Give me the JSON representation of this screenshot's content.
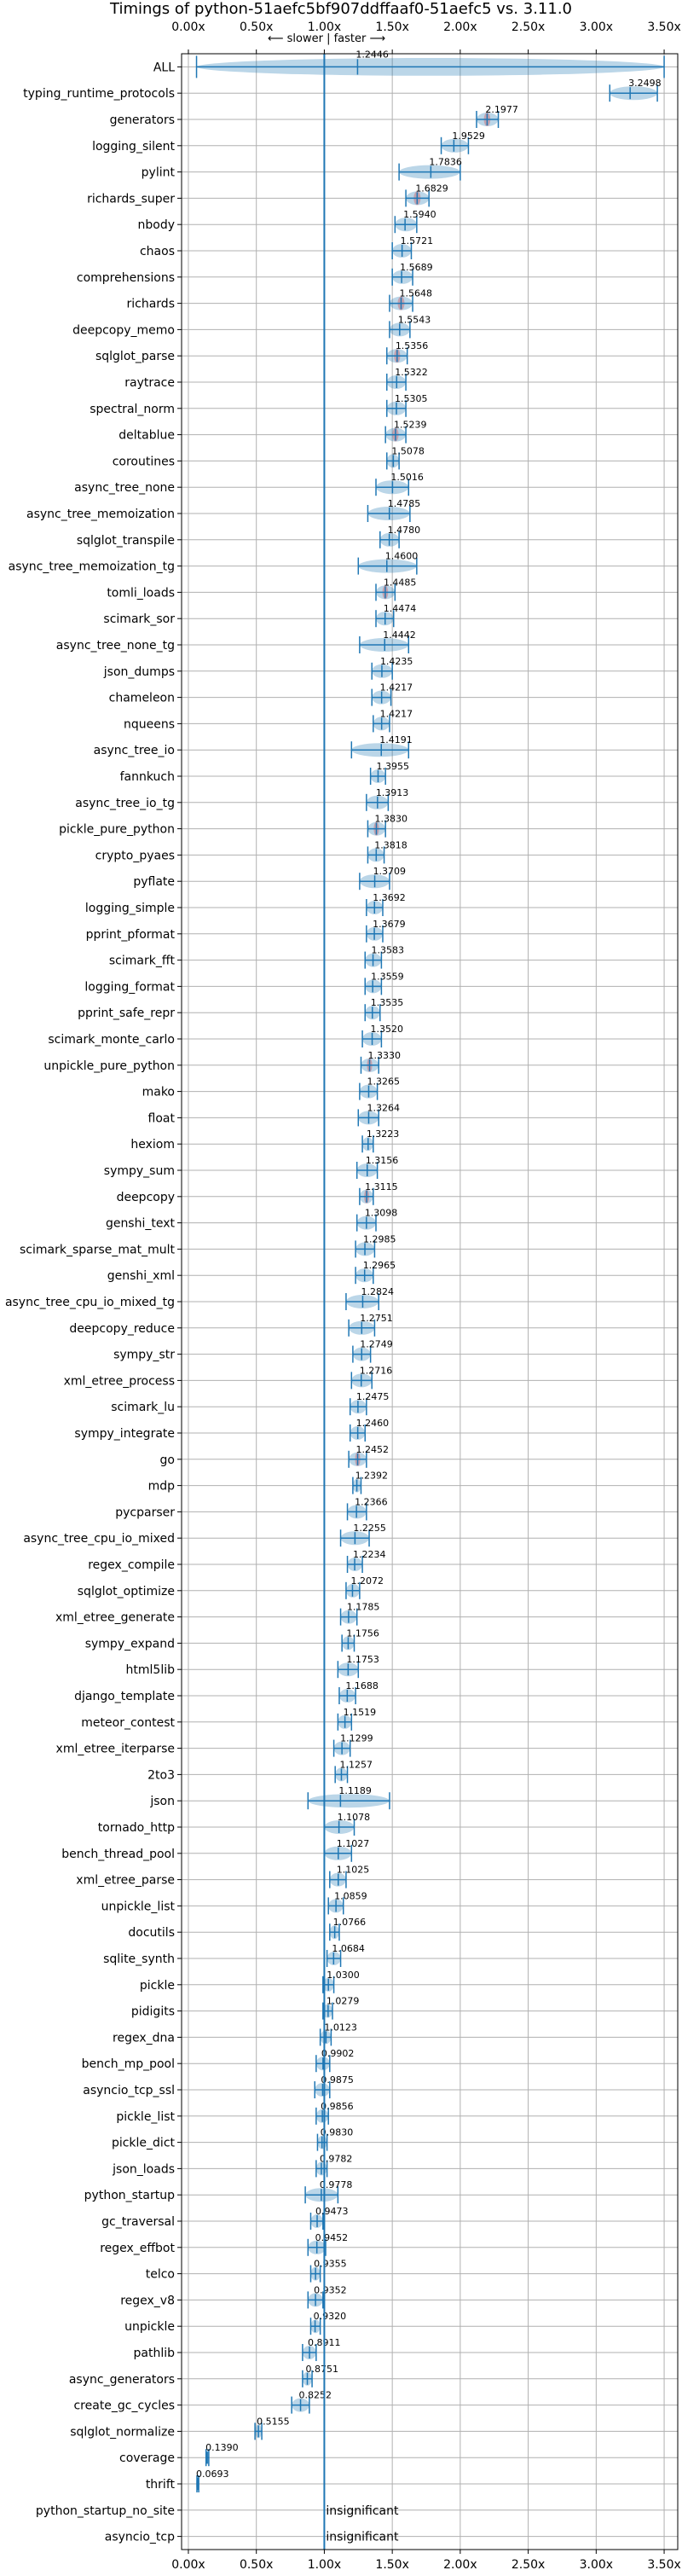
{
  "chart_data": {
    "type": "violin",
    "title": "Timings of python-51aefc5bf907ddffaaf0-51aefc5 vs. 3.11.0",
    "xlabel": "",
    "ylabel": "",
    "xlim": [
      -0.05,
      3.6
    ],
    "xticks": [
      0.0,
      0.5,
      1.0,
      1.5,
      2.0,
      2.5,
      3.0,
      3.5
    ],
    "xtick_labels": [
      "0.00x",
      "0.50x",
      "1.00x",
      "1.50x",
      "2.00x",
      "2.50x",
      "3.00x",
      "3.50x"
    ],
    "reference_line": 1.0,
    "direction_hint": "⟵ slower | faster ⟶",
    "grid": true,
    "colors": {
      "violin": "#1f77b4",
      "significant": "#d62728",
      "reference": "#1f77b4",
      "grid": "#b0b0b0"
    },
    "insignificant_label": "insignificant",
    "benchmarks": [
      {
        "name": "ALL",
        "value": "1.2446",
        "center": 1.2446,
        "lo": 0.06,
        "hi": 3.5,
        "red": false,
        "summary": true
      },
      {
        "name": "typing_runtime_protocols",
        "value": "3.2498",
        "center": 3.2498,
        "lo": 3.1,
        "hi": 3.45,
        "red": false
      },
      {
        "name": "generators",
        "value": "2.1977",
        "center": 2.1977,
        "lo": 2.12,
        "hi": 2.28,
        "red": true
      },
      {
        "name": "logging_silent",
        "value": "1.9529",
        "center": 1.9529,
        "lo": 1.86,
        "hi": 2.06,
        "red": false
      },
      {
        "name": "pylint",
        "value": "1.7836",
        "center": 1.7836,
        "lo": 1.55,
        "hi": 2.0,
        "red": false
      },
      {
        "name": "richards_super",
        "value": "1.6829",
        "center": 1.6829,
        "lo": 1.6,
        "hi": 1.77,
        "red": true
      },
      {
        "name": "nbody",
        "value": "1.5940",
        "center": 1.594,
        "lo": 1.52,
        "hi": 1.68,
        "red": false
      },
      {
        "name": "chaos",
        "value": "1.5721",
        "center": 1.5721,
        "lo": 1.5,
        "hi": 1.64,
        "red": false
      },
      {
        "name": "comprehensions",
        "value": "1.5689",
        "center": 1.5689,
        "lo": 1.5,
        "hi": 1.65,
        "red": false
      },
      {
        "name": "richards",
        "value": "1.5648",
        "center": 1.5648,
        "lo": 1.48,
        "hi": 1.65,
        "red": true
      },
      {
        "name": "deepcopy_memo",
        "value": "1.5543",
        "center": 1.5543,
        "lo": 1.48,
        "hi": 1.63,
        "red": false
      },
      {
        "name": "sqlglot_parse",
        "value": "1.5356",
        "center": 1.5356,
        "lo": 1.46,
        "hi": 1.61,
        "red": true
      },
      {
        "name": "raytrace",
        "value": "1.5322",
        "center": 1.5322,
        "lo": 1.46,
        "hi": 1.6,
        "red": false
      },
      {
        "name": "spectral_norm",
        "value": "1.5305",
        "center": 1.5305,
        "lo": 1.46,
        "hi": 1.6,
        "red": false
      },
      {
        "name": "deltablue",
        "value": "1.5239",
        "center": 1.5239,
        "lo": 1.45,
        "hi": 1.6,
        "red": true
      },
      {
        "name": "coroutines",
        "value": "1.5078",
        "center": 1.5078,
        "lo": 1.46,
        "hi": 1.55,
        "red": false
      },
      {
        "name": "async_tree_none",
        "value": "1.5016",
        "center": 1.5016,
        "lo": 1.38,
        "hi": 1.62,
        "red": false
      },
      {
        "name": "async_tree_memoization",
        "value": "1.4785",
        "center": 1.4785,
        "lo": 1.32,
        "hi": 1.63,
        "red": false
      },
      {
        "name": "sqlglot_transpile",
        "value": "1.4780",
        "center": 1.478,
        "lo": 1.41,
        "hi": 1.55,
        "red": false
      },
      {
        "name": "async_tree_memoization_tg",
        "value": "1.4600",
        "center": 1.46,
        "lo": 1.25,
        "hi": 1.68,
        "red": false
      },
      {
        "name": "tomli_loads",
        "value": "1.4485",
        "center": 1.4485,
        "lo": 1.38,
        "hi": 1.52,
        "red": true
      },
      {
        "name": "scimark_sor",
        "value": "1.4474",
        "center": 1.4474,
        "lo": 1.38,
        "hi": 1.51,
        "red": false
      },
      {
        "name": "async_tree_none_tg",
        "value": "1.4442",
        "center": 1.4442,
        "lo": 1.26,
        "hi": 1.62,
        "red": false
      },
      {
        "name": "json_dumps",
        "value": "1.4235",
        "center": 1.4235,
        "lo": 1.35,
        "hi": 1.5,
        "red": false
      },
      {
        "name": "chameleon",
        "value": "1.4217",
        "center": 1.4217,
        "lo": 1.35,
        "hi": 1.49,
        "red": false
      },
      {
        "name": "nqueens",
        "value": "1.4217",
        "center": 1.4217,
        "lo": 1.36,
        "hi": 1.48,
        "red": false
      },
      {
        "name": "async_tree_io",
        "value": "1.4191",
        "center": 1.4191,
        "lo": 1.2,
        "hi": 1.62,
        "red": false
      },
      {
        "name": "fannkuch",
        "value": "1.3955",
        "center": 1.3955,
        "lo": 1.34,
        "hi": 1.45,
        "red": false
      },
      {
        "name": "async_tree_io_tg",
        "value": "1.3913",
        "center": 1.3913,
        "lo": 1.31,
        "hi": 1.47,
        "red": false
      },
      {
        "name": "pickle_pure_python",
        "value": "1.3830",
        "center": 1.383,
        "lo": 1.32,
        "hi": 1.45,
        "red": true
      },
      {
        "name": "crypto_pyaes",
        "value": "1.3818",
        "center": 1.3818,
        "lo": 1.32,
        "hi": 1.44,
        "red": false
      },
      {
        "name": "pyflate",
        "value": "1.3709",
        "center": 1.3709,
        "lo": 1.26,
        "hi": 1.48,
        "red": false
      },
      {
        "name": "logging_simple",
        "value": "1.3692",
        "center": 1.3692,
        "lo": 1.31,
        "hi": 1.43,
        "red": false
      },
      {
        "name": "pprint_pformat",
        "value": "1.3679",
        "center": 1.3679,
        "lo": 1.31,
        "hi": 1.43,
        "red": false
      },
      {
        "name": "scimark_fft",
        "value": "1.3583",
        "center": 1.3583,
        "lo": 1.3,
        "hi": 1.42,
        "red": false
      },
      {
        "name": "logging_format",
        "value": "1.3559",
        "center": 1.3559,
        "lo": 1.3,
        "hi": 1.42,
        "red": false
      },
      {
        "name": "pprint_safe_repr",
        "value": "1.3535",
        "center": 1.3535,
        "lo": 1.3,
        "hi": 1.41,
        "red": false
      },
      {
        "name": "scimark_monte_carlo",
        "value": "1.3520",
        "center": 1.352,
        "lo": 1.28,
        "hi": 1.42,
        "red": false
      },
      {
        "name": "unpickle_pure_python",
        "value": "1.3330",
        "center": 1.333,
        "lo": 1.27,
        "hi": 1.4,
        "red": true
      },
      {
        "name": "mako",
        "value": "1.3265",
        "center": 1.3265,
        "lo": 1.26,
        "hi": 1.39,
        "red": false
      },
      {
        "name": "float",
        "value": "1.3264",
        "center": 1.3264,
        "lo": 1.25,
        "hi": 1.4,
        "red": false
      },
      {
        "name": "hexiom",
        "value": "1.3223",
        "center": 1.3223,
        "lo": 1.28,
        "hi": 1.36,
        "red": false
      },
      {
        "name": "sympy_sum",
        "value": "1.3156",
        "center": 1.3156,
        "lo": 1.24,
        "hi": 1.39,
        "red": false
      },
      {
        "name": "deepcopy",
        "value": "1.3115",
        "center": 1.3115,
        "lo": 1.26,
        "hi": 1.36,
        "red": true
      },
      {
        "name": "genshi_text",
        "value": "1.3098",
        "center": 1.3098,
        "lo": 1.24,
        "hi": 1.38,
        "red": false
      },
      {
        "name": "scimark_sparse_mat_mult",
        "value": "1.2985",
        "center": 1.2985,
        "lo": 1.23,
        "hi": 1.37,
        "red": false
      },
      {
        "name": "genshi_xml",
        "value": "1.2965",
        "center": 1.2965,
        "lo": 1.23,
        "hi": 1.36,
        "red": false
      },
      {
        "name": "async_tree_cpu_io_mixed_tg",
        "value": "1.2824",
        "center": 1.2824,
        "lo": 1.16,
        "hi": 1.4,
        "red": false
      },
      {
        "name": "deepcopy_reduce",
        "value": "1.2751",
        "center": 1.2751,
        "lo": 1.18,
        "hi": 1.37,
        "red": false
      },
      {
        "name": "sympy_str",
        "value": "1.2749",
        "center": 1.2749,
        "lo": 1.21,
        "hi": 1.34,
        "red": false
      },
      {
        "name": "xml_etree_process",
        "value": "1.2716",
        "center": 1.2716,
        "lo": 1.2,
        "hi": 1.35,
        "red": false
      },
      {
        "name": "scimark_lu",
        "value": "1.2475",
        "center": 1.2475,
        "lo": 1.19,
        "hi": 1.31,
        "red": false
      },
      {
        "name": "sympy_integrate",
        "value": "1.2460",
        "center": 1.246,
        "lo": 1.19,
        "hi": 1.3,
        "red": false
      },
      {
        "name": "go",
        "value": "1.2452",
        "center": 1.2452,
        "lo": 1.18,
        "hi": 1.31,
        "red": true
      },
      {
        "name": "mdp",
        "value": "1.2392",
        "center": 1.2392,
        "lo": 1.21,
        "hi": 1.27,
        "red": false
      },
      {
        "name": "pycparser",
        "value": "1.2366",
        "center": 1.2366,
        "lo": 1.17,
        "hi": 1.31,
        "red": false
      },
      {
        "name": "async_tree_cpu_io_mixed",
        "value": "1.2255",
        "center": 1.2255,
        "lo": 1.12,
        "hi": 1.33,
        "red": false
      },
      {
        "name": "regex_compile",
        "value": "1.2234",
        "center": 1.2234,
        "lo": 1.17,
        "hi": 1.28,
        "red": false
      },
      {
        "name": "sqlglot_optimize",
        "value": "1.2072",
        "center": 1.2072,
        "lo": 1.16,
        "hi": 1.26,
        "red": false
      },
      {
        "name": "xml_etree_generate",
        "value": "1.1785",
        "center": 1.1785,
        "lo": 1.12,
        "hi": 1.24,
        "red": false
      },
      {
        "name": "sympy_expand",
        "value": "1.1756",
        "center": 1.1756,
        "lo": 1.13,
        "hi": 1.22,
        "red": false
      },
      {
        "name": "html5lib",
        "value": "1.1753",
        "center": 1.1753,
        "lo": 1.1,
        "hi": 1.25,
        "red": false
      },
      {
        "name": "django_template",
        "value": "1.1688",
        "center": 1.1688,
        "lo": 1.11,
        "hi": 1.23,
        "red": false
      },
      {
        "name": "meteor_contest",
        "value": "1.1519",
        "center": 1.1519,
        "lo": 1.1,
        "hi": 1.2,
        "red": false
      },
      {
        "name": "xml_etree_iterparse",
        "value": "1.1299",
        "center": 1.1299,
        "lo": 1.07,
        "hi": 1.19,
        "red": false
      },
      {
        "name": "2to3",
        "value": "1.1257",
        "center": 1.1257,
        "lo": 1.08,
        "hi": 1.17,
        "red": false
      },
      {
        "name": "json",
        "value": "1.1189",
        "center": 1.1189,
        "lo": 0.88,
        "hi": 1.48,
        "red": false
      },
      {
        "name": "tornado_http",
        "value": "1.1078",
        "center": 1.1078,
        "lo": 1.0,
        "hi": 1.22,
        "red": false
      },
      {
        "name": "bench_thread_pool",
        "value": "1.1027",
        "center": 1.1027,
        "lo": 1.0,
        "hi": 1.2,
        "red": false
      },
      {
        "name": "xml_etree_parse",
        "value": "1.1025",
        "center": 1.1025,
        "lo": 1.04,
        "hi": 1.16,
        "red": false
      },
      {
        "name": "unpickle_list",
        "value": "1.0859",
        "center": 1.0859,
        "lo": 1.03,
        "hi": 1.14,
        "red": false
      },
      {
        "name": "docutils",
        "value": "1.0766",
        "center": 1.0766,
        "lo": 1.04,
        "hi": 1.11,
        "red": false
      },
      {
        "name": "sqlite_synth",
        "value": "1.0684",
        "center": 1.0684,
        "lo": 1.02,
        "hi": 1.12,
        "red": false
      },
      {
        "name": "pickle",
        "value": "1.0300",
        "center": 1.03,
        "lo": 0.99,
        "hi": 1.07,
        "red": false
      },
      {
        "name": "pidigits",
        "value": "1.0279",
        "center": 1.0279,
        "lo": 0.99,
        "hi": 1.06,
        "red": false
      },
      {
        "name": "regex_dna",
        "value": "1.0123",
        "center": 1.0123,
        "lo": 0.97,
        "hi": 1.05,
        "red": false
      },
      {
        "name": "bench_mp_pool",
        "value": "0.9902",
        "center": 0.9902,
        "lo": 0.94,
        "hi": 1.04,
        "red": false
      },
      {
        "name": "asyncio_tcp_ssl",
        "value": "0.9875",
        "center": 0.9875,
        "lo": 0.93,
        "hi": 1.04,
        "red": false
      },
      {
        "name": "pickle_list",
        "value": "0.9856",
        "center": 0.9856,
        "lo": 0.94,
        "hi": 1.03,
        "red": false
      },
      {
        "name": "pickle_dict",
        "value": "0.9830",
        "center": 0.983,
        "lo": 0.95,
        "hi": 1.02,
        "red": false
      },
      {
        "name": "json_loads",
        "value": "0.9782",
        "center": 0.9782,
        "lo": 0.94,
        "hi": 1.02,
        "red": false
      },
      {
        "name": "python_startup",
        "value": "0.9778",
        "center": 0.9778,
        "lo": 0.86,
        "hi": 1.1,
        "red": false
      },
      {
        "name": "gc_traversal",
        "value": "0.9473",
        "center": 0.9473,
        "lo": 0.9,
        "hi": 0.99,
        "red": false
      },
      {
        "name": "regex_effbot",
        "value": "0.9452",
        "center": 0.9452,
        "lo": 0.88,
        "hi": 1.01,
        "red": false
      },
      {
        "name": "telco",
        "value": "0.9355",
        "center": 0.9355,
        "lo": 0.9,
        "hi": 0.97,
        "red": false
      },
      {
        "name": "regex_v8",
        "value": "0.9352",
        "center": 0.9352,
        "lo": 0.88,
        "hi": 0.99,
        "red": false
      },
      {
        "name": "unpickle",
        "value": "0.9320",
        "center": 0.932,
        "lo": 0.9,
        "hi": 0.97,
        "red": false
      },
      {
        "name": "pathlib",
        "value": "0.8911",
        "center": 0.8911,
        "lo": 0.84,
        "hi": 0.94,
        "red": false
      },
      {
        "name": "async_generators",
        "value": "0.8751",
        "center": 0.8751,
        "lo": 0.84,
        "hi": 0.91,
        "red": false
      },
      {
        "name": "create_gc_cycles",
        "value": "0.8252",
        "center": 0.8252,
        "lo": 0.76,
        "hi": 0.89,
        "red": false
      },
      {
        "name": "sqlglot_normalize",
        "value": "0.5155",
        "center": 0.5155,
        "lo": 0.49,
        "hi": 0.54,
        "red": false
      },
      {
        "name": "coverage",
        "value": "0.1390",
        "center": 0.139,
        "lo": 0.13,
        "hi": 0.15,
        "red": false
      },
      {
        "name": "thrift",
        "value": "0.0693",
        "center": 0.0693,
        "lo": 0.063,
        "hi": 0.076,
        "red": false
      },
      {
        "name": "python_startup_no_site",
        "value": "",
        "center": null,
        "lo": null,
        "hi": null,
        "red": false,
        "insignificant": true
      },
      {
        "name": "asyncio_tcp",
        "value": "",
        "center": null,
        "lo": null,
        "hi": null,
        "red": false,
        "insignificant": true
      }
    ]
  }
}
